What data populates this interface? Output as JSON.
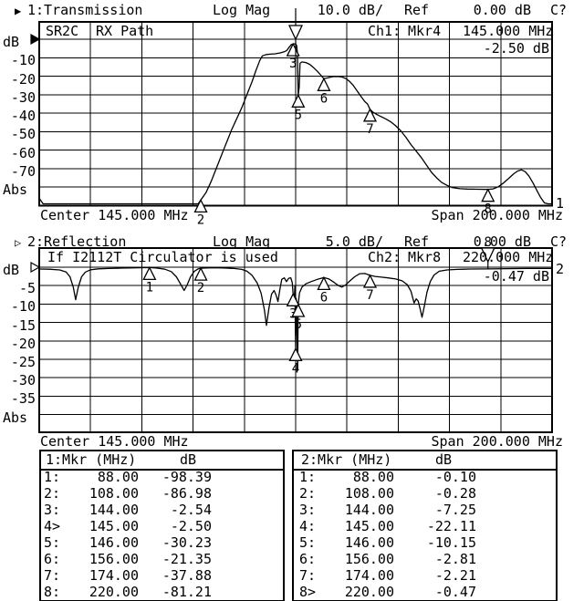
{
  "colors": {
    "fg": "#000000",
    "bg": "#ffffff"
  },
  "ch1": {
    "title": {
      "arrow": "▶",
      "label": "1:Transmission",
      "scale_label": "Log Mag",
      "scale_value": "10.0 dB/",
      "ref_label": "Ref",
      "ref_value": "0.00 dB",
      "cal": "C?"
    },
    "header": {
      "cell1": "SR2C",
      "cell2": "RX Path",
      "ch": "Ch1:",
      "mkr": "Mkr4",
      "freq": "145.000 MHz",
      "value": "-2.50 dB"
    },
    "axis": {
      "labels": [
        "dB",
        "-10",
        "-20",
        "-30",
        "-40",
        "-50",
        "-60",
        "-70",
        "Abs"
      ]
    },
    "footer": {
      "center": "Center 145.000 MHz",
      "span": "Span 200.000 MHz"
    },
    "trace_number": "1"
  },
  "ch2": {
    "title": {
      "arrow": "▷",
      "label": "2:Reflection",
      "scale_label": "Log Mag",
      "scale_value": "5.0 dB/",
      "ref_label": "Ref",
      "ref_value": "0.00 dB",
      "cal": "C?"
    },
    "header": {
      "note": "If I2112T Circulator is used",
      "ch": "Ch2:",
      "mkr": "Mkr8",
      "freq": "220.000 MHz",
      "value": "-0.47 dB"
    },
    "axis": {
      "labels": [
        "dB",
        "-5",
        "-10",
        "-15",
        "-20",
        "-25",
        "-30",
        "-35",
        "Abs"
      ]
    },
    "footer": {
      "center": "Center 145.000 MHz",
      "span": "Span 200.000 MHz"
    },
    "trace_number": "2"
  },
  "tables": {
    "t1": {
      "header": "1:Mkr (MHz)",
      "unit": "dB",
      "rows": [
        {
          "n": "1:",
          "f": "88.00",
          "v": "-98.39"
        },
        {
          "n": "2:",
          "f": "108.00",
          "v": "-86.98"
        },
        {
          "n": "3:",
          "f": "144.00",
          "v": "-2.54"
        },
        {
          "n": "4>",
          "f": "145.00",
          "v": "-2.50"
        },
        {
          "n": "5:",
          "f": "146.00",
          "v": "-30.23"
        },
        {
          "n": "6:",
          "f": "156.00",
          "v": "-21.35"
        },
        {
          "n": "7:",
          "f": "174.00",
          "v": "-37.88"
        },
        {
          "n": "8:",
          "f": "220.00",
          "v": "-81.21"
        }
      ]
    },
    "t2": {
      "header": "2:Mkr (MHz)",
      "unit": "dB",
      "rows": [
        {
          "n": "1:",
          "f": "88.00",
          "v": "-0.10"
        },
        {
          "n": "2:",
          "f": "108.00",
          "v": "-0.28"
        },
        {
          "n": "3:",
          "f": "144.00",
          "v": "-7.25"
        },
        {
          "n": "4:",
          "f": "145.00",
          "v": "-22.11"
        },
        {
          "n": "5:",
          "f": "146.00",
          "v": "-10.15"
        },
        {
          "n": "6:",
          "f": "156.00",
          "v": "-2.81"
        },
        {
          "n": "7:",
          "f": "174.00",
          "v": "-2.21"
        },
        {
          "n": "8>",
          "f": "220.00",
          "v": "-0.47"
        }
      ]
    }
  },
  "chart_data": [
    {
      "type": "line",
      "channel": 1,
      "title": "1:Transmission Log Mag 10.0 dB/ Ref 0.00 dB",
      "name": "Transmission",
      "format": "Log Mag",
      "scale_db_per_div": 10.0,
      "ref_db": 0.0,
      "center_mhz": 145.0,
      "span_mhz": 200.0,
      "x_range_mhz": [
        45,
        245
      ],
      "ylim": [
        -90,
        0
      ],
      "y_divisions": 8,
      "grid": true,
      "annotations": [
        "SR2C",
        "RX Path"
      ],
      "active_marker": 4,
      "markers": [
        {
          "n": "1",
          "mhz": 88,
          "db": -98.39,
          "shown": false
        },
        {
          "n": "2",
          "mhz": 108,
          "db": -86.98,
          "shown": true
        },
        {
          "n": "3",
          "mhz": 144,
          "db": -2.54,
          "shown": true
        },
        {
          "n": "4",
          "mhz": 145,
          "db": -2.5,
          "shown": true,
          "active": true
        },
        {
          "n": "5",
          "mhz": 146,
          "db": -30.23,
          "shown": true
        },
        {
          "n": "6",
          "mhz": 156,
          "db": -21.35,
          "shown": true
        },
        {
          "n": "7",
          "mhz": 174,
          "db": -37.88,
          "shown": true
        },
        {
          "n": "8",
          "mhz": 220,
          "db": -81.21,
          "shown": true
        }
      ],
      "series": [
        {
          "name": "RX Path transmission",
          "points": [
            [
              45,
              -86
            ],
            [
              46.5,
              -98
            ],
            [
              55,
              -98
            ],
            [
              65,
              -98
            ],
            [
              75,
              -98
            ],
            [
              85,
              -98
            ],
            [
              95,
              -98
            ],
            [
              103,
              -97
            ],
            [
              107,
              -90
            ],
            [
              108,
              -87
            ],
            [
              110,
              -83
            ],
            [
              112,
              -77
            ],
            [
              114,
              -70
            ],
            [
              116,
              -63
            ],
            [
              118,
              -56
            ],
            [
              120,
              -49
            ],
            [
              122,
              -43
            ],
            [
              124,
              -37
            ],
            [
              126,
              -30
            ],
            [
              128,
              -23
            ],
            [
              129.5,
              -17
            ],
            [
              131,
              -11.5
            ],
            [
              132,
              -9
            ],
            [
              133.5,
              -8.3
            ],
            [
              135,
              -8.1
            ],
            [
              137,
              -7.9
            ],
            [
              139,
              -7.4
            ],
            [
              140.5,
              -6.8
            ],
            [
              141.5,
              -6.1
            ],
            [
              142.5,
              -4.3
            ],
            [
              143.3,
              -2.9
            ],
            [
              144,
              -2.54
            ],
            [
              144.8,
              -2.5
            ],
            [
              145,
              -2.5
            ],
            [
              145.4,
              -3.5
            ],
            [
              145.7,
              -8
            ],
            [
              146,
              -30.23
            ],
            [
              146.4,
              -26
            ],
            [
              146.7,
              -13
            ],
            [
              147.5,
              -12.3
            ],
            [
              149,
              -12.6
            ],
            [
              150.5,
              -13.6
            ],
            [
              152,
              -15.4
            ],
            [
              153.5,
              -17.4
            ],
            [
              155,
              -19.7
            ],
            [
              156,
              -21.35
            ],
            [
              157.5,
              -20.9
            ],
            [
              159.5,
              -20.2
            ],
            [
              161.5,
              -20.1
            ],
            [
              163,
              -20.4
            ],
            [
              164.5,
              -21.2
            ],
            [
              166,
              -22.8
            ],
            [
              167.5,
              -25
            ],
            [
              169,
              -28
            ],
            [
              170.5,
              -31
            ],
            [
              172,
              -33.8
            ],
            [
              173,
              -35
            ],
            [
              174,
              -37.88
            ],
            [
              175,
              -39.3
            ],
            [
              176.5,
              -40.6
            ],
            [
              178,
              -41.6
            ],
            [
              180,
              -43
            ],
            [
              182,
              -44.6
            ],
            [
              184,
              -46.8
            ],
            [
              186,
              -49.5
            ],
            [
              188,
              -53
            ],
            [
              190,
              -57
            ],
            [
              192,
              -60.5
            ],
            [
              194,
              -64
            ],
            [
              196,
              -68
            ],
            [
              198,
              -72
            ],
            [
              200,
              -75
            ],
            [
              202,
              -77.5
            ],
            [
              204,
              -79
            ],
            [
              206,
              -80.2
            ],
            [
              209,
              -80.8
            ],
            [
              212,
              -81
            ],
            [
              216,
              -81.1
            ],
            [
              220,
              -81.21
            ],
            [
              222,
              -80.9
            ],
            [
              224,
              -79.8
            ],
            [
              226,
              -77.8
            ],
            [
              228,
              -75.4
            ],
            [
              230,
              -72.8
            ],
            [
              231.5,
              -71.3
            ],
            [
              233,
              -70.6
            ],
            [
              234.5,
              -71.6
            ],
            [
              236,
              -74
            ],
            [
              237.5,
              -77.5
            ],
            [
              239,
              -81.5
            ],
            [
              240.5,
              -85.5
            ],
            [
              242,
              -88.5
            ],
            [
              243.5,
              -89.8
            ],
            [
              245,
              -89.8
            ]
          ]
        }
      ]
    },
    {
      "type": "line",
      "channel": 2,
      "title": "2:Reflection Log Mag 5.0 dB/ Ref 0.00 dB",
      "name": "Reflection",
      "format": "Log Mag",
      "scale_db_per_div": 5.0,
      "ref_db": 0.0,
      "center_mhz": 145.0,
      "span_mhz": 200.0,
      "x_range_mhz": [
        45,
        245
      ],
      "ylim": [
        -45,
        0
      ],
      "y_divisions": 8,
      "grid": true,
      "annotations": [
        "If I2112T Circulator is used"
      ],
      "active_marker": 8,
      "markers": [
        {
          "n": "1",
          "mhz": 88,
          "db": -0.1,
          "shown": true
        },
        {
          "n": "2",
          "mhz": 108,
          "db": -0.28,
          "shown": true
        },
        {
          "n": "3",
          "mhz": 144,
          "db": -7.25,
          "shown": true
        },
        {
          "n": "4",
          "mhz": 145,
          "db": -22.11,
          "shown": true
        },
        {
          "n": "5",
          "mhz": 146,
          "db": -10.15,
          "shown": true
        },
        {
          "n": "6",
          "mhz": 156,
          "db": -2.81,
          "shown": true
        },
        {
          "n": "7",
          "mhz": 174,
          "db": -2.21,
          "shown": true
        },
        {
          "n": "8",
          "mhz": 220,
          "db": -0.47,
          "shown": true,
          "active": true
        }
      ],
      "series": [
        {
          "name": "Reflection",
          "points": [
            [
              45,
              -0.5
            ],
            [
              49,
              -0.55
            ],
            [
              53,
              -0.75
            ],
            [
              55.5,
              -1.3
            ],
            [
              57,
              -2.6
            ],
            [
              58.3,
              -5.5
            ],
            [
              59.2,
              -8.8
            ],
            [
              60.2,
              -5.5
            ],
            [
              61.5,
              -2.6
            ],
            [
              63,
              -1.3
            ],
            [
              65,
              -0.7
            ],
            [
              68,
              -0.45
            ],
            [
              72,
              -0.35
            ],
            [
              77,
              -0.25
            ],
            [
              82,
              -0.18
            ],
            [
              88,
              -0.1
            ],
            [
              91,
              -0.25
            ],
            [
              94,
              -0.55
            ],
            [
              96.5,
              -1.2
            ],
            [
              98.5,
              -2.6
            ],
            [
              100.3,
              -4.8
            ],
            [
              101.5,
              -6.3
            ],
            [
              102.7,
              -4.8
            ],
            [
              104,
              -2.6
            ],
            [
              105.5,
              -1.1
            ],
            [
              107,
              -0.45
            ],
            [
              108,
              -0.28
            ],
            [
              110,
              -0.2
            ],
            [
              113,
              -0.15
            ],
            [
              117,
              -0.2
            ],
            [
              121,
              -0.35
            ],
            [
              124,
              -0.6
            ],
            [
              126,
              -1.1
            ],
            [
              128,
              -2.2
            ],
            [
              130,
              -4.3
            ],
            [
              131.5,
              -7
            ],
            [
              132.8,
              -11.5
            ],
            [
              133.6,
              -15.8
            ],
            [
              134.6,
              -11
            ],
            [
              135.6,
              -7.3
            ],
            [
              136.6,
              -6.3
            ],
            [
              137.4,
              -7.6
            ],
            [
              138.1,
              -9.3
            ],
            [
              138.9,
              -5.8
            ],
            [
              139.6,
              -3.3
            ],
            [
              140.6,
              -2.9
            ],
            [
              141.4,
              -3.9
            ],
            [
              142.3,
              -3
            ],
            [
              143.1,
              -2.9
            ],
            [
              143.7,
              -4.2
            ],
            [
              144,
              -7.25
            ],
            [
              144.4,
              -9.5
            ],
            [
              144.7,
              -5
            ],
            [
              144.9,
              -18
            ],
            [
              145,
              -22.11
            ],
            [
              145.2,
              -8.5
            ],
            [
              145.5,
              -15
            ],
            [
              145.8,
              -28
            ],
            [
              146,
              -10.15
            ],
            [
              146.5,
              -7
            ],
            [
              147.5,
              -5.4
            ],
            [
              149,
              -4.5
            ],
            [
              151,
              -3.9
            ],
            [
              153.5,
              -3.3
            ],
            [
              156,
              -2.81
            ],
            [
              158,
              -3.2
            ],
            [
              160,
              -4.1
            ],
            [
              161.7,
              -5
            ],
            [
              163,
              -5.4
            ],
            [
              164.5,
              -4.8
            ],
            [
              166,
              -3.8
            ],
            [
              168,
              -2.6
            ],
            [
              170,
              -1.75
            ],
            [
              172,
              -1.7
            ],
            [
              174,
              -2.21
            ],
            [
              176,
              -2.5
            ],
            [
              178.5,
              -2.7
            ],
            [
              181,
              -2.9
            ],
            [
              184,
              -3.2
            ],
            [
              186.5,
              -3.7
            ],
            [
              188.5,
              -4.7
            ],
            [
              190,
              -6.5
            ],
            [
              191.2,
              -9.7
            ],
            [
              192,
              -8.6
            ],
            [
              192.8,
              -9.2
            ],
            [
              193.6,
              -11.5
            ],
            [
              194.3,
              -13.6
            ],
            [
              195.2,
              -10.5
            ],
            [
              196.2,
              -6.8
            ],
            [
              197.5,
              -3.9
            ],
            [
              199,
              -2.1
            ],
            [
              201,
              -1.1
            ],
            [
              204,
              -0.75
            ],
            [
              208,
              -0.6
            ],
            [
              213,
              -0.5
            ],
            [
              220,
              -0.47
            ],
            [
              227,
              -0.4
            ],
            [
              235,
              -0.35
            ],
            [
              245,
              -0.35
            ]
          ]
        }
      ]
    }
  ]
}
